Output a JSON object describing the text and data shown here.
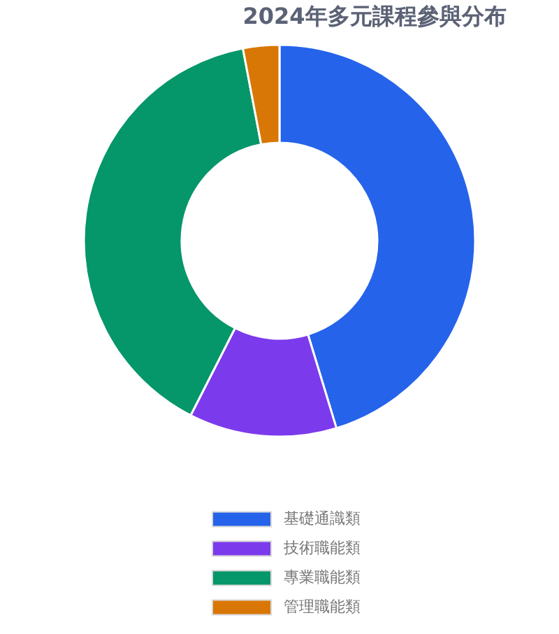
{
  "chart_data": {
    "type": "donut",
    "title": "2024年多元課程參與分布",
    "categories": [
      "基礎通識類",
      "技術職能類",
      "專業職能類",
      "管理職能類"
    ],
    "values": [
      45.3,
      12.2,
      39.5,
      3.0
    ],
    "colors": [
      "#2563eb",
      "#7c3aed",
      "#059669",
      "#d97706"
    ],
    "legend": "bottom"
  }
}
